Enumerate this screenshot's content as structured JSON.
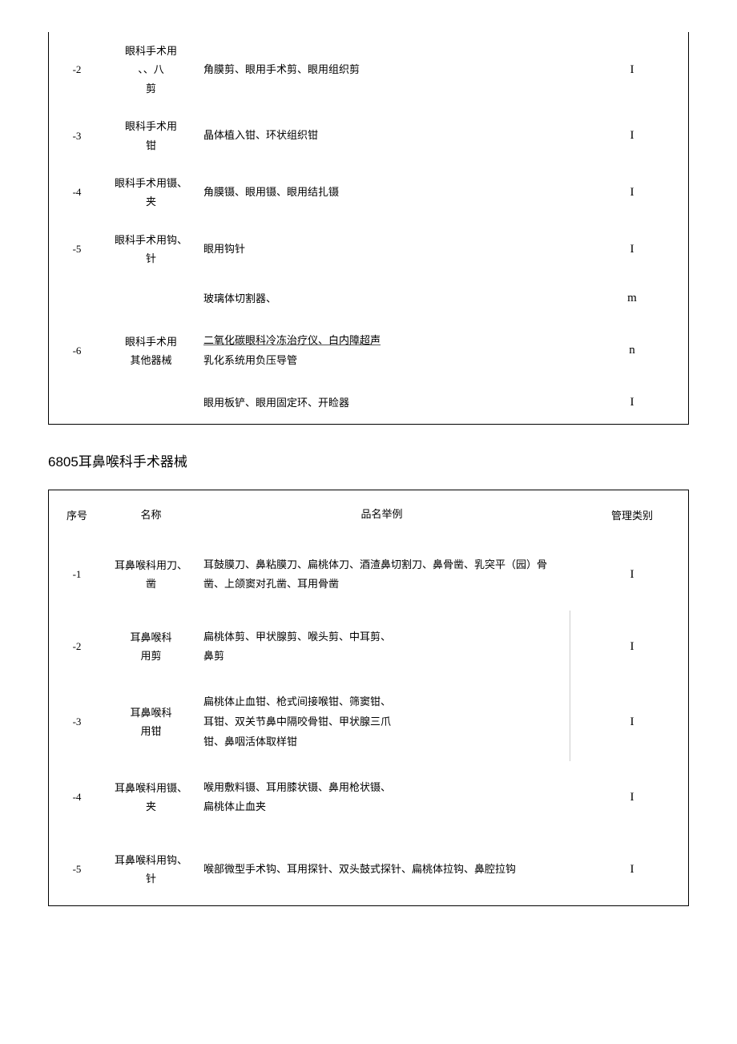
{
  "table1": {
    "rows": [
      {
        "seq": "-2",
        "name": "眼科手术用\n、、八\n剪",
        "example": "角膜剪、眼用手术剪、眼用组织剪",
        "category": "I"
      },
      {
        "seq": "-3",
        "name": "眼科手术用\n钳",
        "example": "晶体植入钳、环状组织钳",
        "category": "I"
      },
      {
        "seq": "-4",
        "name": "眼科手术用镊、\n夹",
        "example": "角膜镊、眼用镊、眼用结扎镊",
        "category": "I"
      },
      {
        "seq": "-5",
        "name": "眼科手术用钩、\n针",
        "example": "眼用钩针",
        "category": "I"
      }
    ],
    "row6": {
      "seq": "-6",
      "name": "眼科手术用\n其他器械",
      "subs": [
        {
          "example": "玻璃体切割器、",
          "category": "m"
        },
        {
          "example_prefix": "二氧化碳眼科冷冻治疗仪、白内障超声",
          "example_suffix": "乳化系统用负压导管",
          "category": "n"
        },
        {
          "example": "眼用板铲、眼用固定环、开睑器",
          "category": "I"
        }
      ]
    }
  },
  "section_title": "6805耳鼻喉科手术器械",
  "table2": {
    "headers": {
      "seq": "序号",
      "name": "名称",
      "example": "品名举例",
      "category": "管理类别"
    },
    "rows": [
      {
        "seq": "-1",
        "name": "耳鼻喉科用刀、\n凿",
        "example": "耳鼓膜刀、鼻粘膜刀、扁桃体刀、酒渣鼻切割刀、鼻骨凿、乳突平（园）骨凿、上颌窦对孔凿、耳用骨凿",
        "category": "I"
      },
      {
        "seq": "-2",
        "name": "耳鼻喉科\n用剪",
        "example": "扁桃体剪、甲状腺剪、喉头剪、中耳剪、\n鼻剪",
        "category": "I",
        "hair": true
      },
      {
        "seq": "-3",
        "name": "耳鼻喉科\n用钳",
        "example": "扁桃体止血钳、枪式间接喉钳、筛窦钳、\n耳钳、双关节鼻中隔咬骨钳、甲状腺三爪\n钳、鼻咽活体取样钳",
        "category": "I",
        "hair": true
      },
      {
        "seq": "-4",
        "name": "耳鼻喉科用镊、\n夹",
        "example": "喉用敷料镊、耳用膝状镊、鼻用枪状镊、\n扁桃体止血夹",
        "category": "I"
      },
      {
        "seq": "-5",
        "name": "耳鼻喉科用钩、\n针",
        "example": "喉部微型手术钩、耳用探针、双头鼓式探针、扁桃体拉钩、鼻腔拉钩",
        "category": "I"
      }
    ]
  }
}
